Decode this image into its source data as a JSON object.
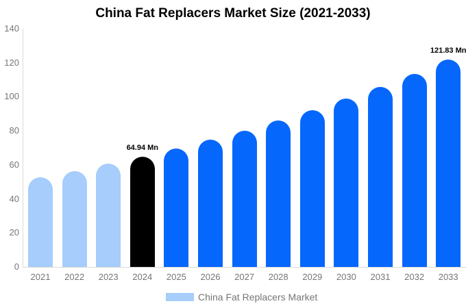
{
  "page": {
    "background": "#ffffff"
  },
  "chart_data": {
    "type": "bar",
    "title": "China Fat Replacers Market Size (2021-2033)",
    "unit": "Mn",
    "categories": [
      "2021",
      "2022",
      "2023",
      "2024",
      "2025",
      "2026",
      "2027",
      "2028",
      "2029",
      "2030",
      "2031",
      "2032",
      "2033"
    ],
    "values": [
      52.65,
      56.46,
      60.55,
      64.94,
      69.64,
      74.69,
      80.1,
      85.9,
      92.12,
      98.79,
      105.95,
      113.63,
      121.83
    ],
    "ylim": [
      0,
      140
    ],
    "yticks": [
      0,
      20,
      40,
      60,
      80,
      100,
      120,
      140
    ],
    "grid": false,
    "bar_colors": [
      "#a6cdfb",
      "#a6cdfb",
      "#a6cdfb",
      "#000000",
      "#0667fc",
      "#0667fc",
      "#0667fc",
      "#0667fc",
      "#0667fc",
      "#0667fc",
      "#0667fc",
      "#0667fc",
      "#0667fc"
    ],
    "data_labels": [
      {
        "category": "2024",
        "text": "64.94 Mn"
      },
      {
        "category": "2033",
        "text": "121.83 Mn"
      }
    ],
    "legend": {
      "position": "bottom",
      "entries": [
        {
          "label": "China Fat Replacers Market",
          "color": "#a6cdfb"
        }
      ]
    },
    "colors": {
      "axis_line": "#d9d9d9",
      "tick_label": "#757575",
      "title": "#000000"
    }
  }
}
